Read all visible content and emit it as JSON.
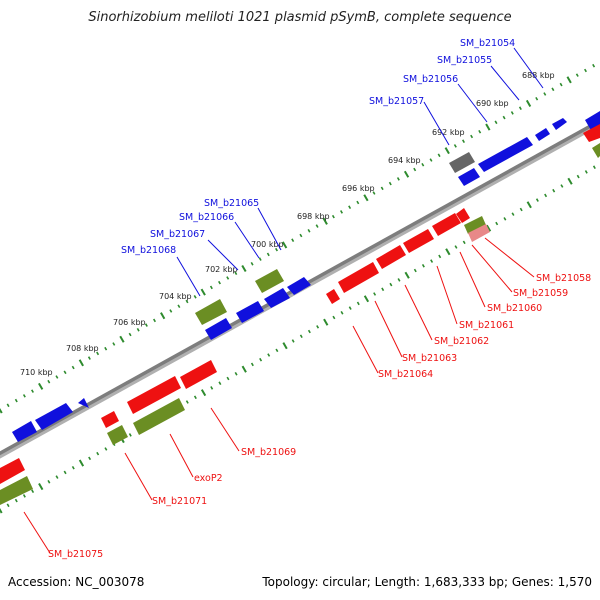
{
  "title": "Sinorhizobium meliloti 1021 plasmid pSymB, complete sequence",
  "footer": {
    "accession": "Accession: NC_003078",
    "summary": "Topology: circular; Length: 1,683,333 bp; Genes: 1,570"
  },
  "colors": {
    "forward_gene": "#1010dd",
    "reverse_gene": "#ee1111",
    "rna_or_other": "#6b8e23",
    "pseudo": "#666666",
    "backbone": "#808080",
    "ticks": "#2e8b2e"
  },
  "ticks": [
    "688 kbp",
    "690 kbp",
    "692 kbp",
    "694 kbp",
    "696 kbp",
    "698 kbp",
    "700 kbp",
    "702 kbp",
    "704 kbp",
    "706 kbp",
    "708 kbp",
    "710 kbp"
  ],
  "labels": {
    "top": [
      "SM_b21054",
      "SM_b21055",
      "SM_b21056",
      "SM_b21057",
      "SM_b21065",
      "SM_b21066",
      "SM_b21067",
      "SM_b21068"
    ],
    "bottom": [
      "SM_b21058",
      "SM_b21059",
      "SM_b21060",
      "SM_b21061",
      "SM_b21062",
      "SM_b21063",
      "SM_b21064",
      "SM_b21069",
      "exoP2",
      "SM_b21071",
      "SM_b21075"
    ]
  }
}
